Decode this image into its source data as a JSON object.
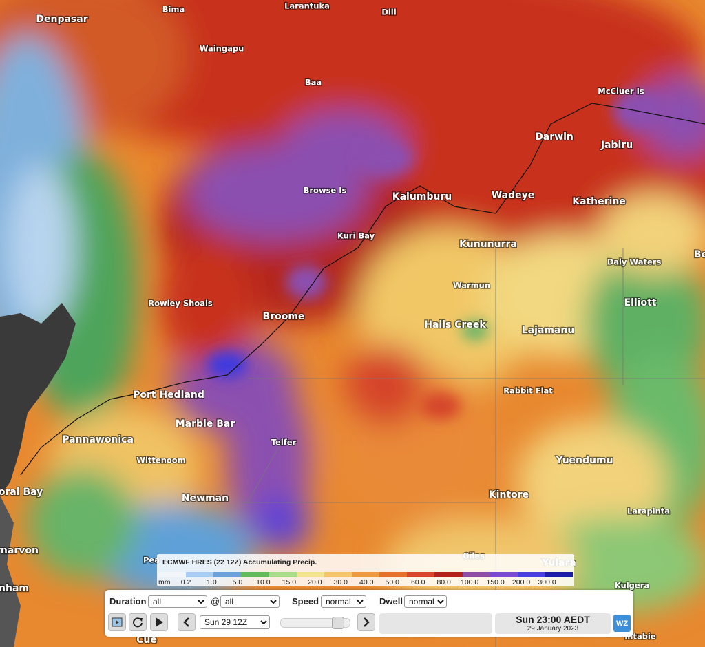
{
  "map": {
    "places": [
      {
        "label": "Denpasar",
        "size": "big"
      },
      {
        "label": "Bima",
        "size": "small"
      },
      {
        "label": "Larantuka",
        "size": "small"
      },
      {
        "label": "Dili",
        "size": "small"
      },
      {
        "label": "Waingapu",
        "size": "small"
      },
      {
        "label": "Baa",
        "size": "small"
      },
      {
        "label": "McCluer Is",
        "size": "small"
      },
      {
        "label": "Darwin",
        "size": "big"
      },
      {
        "label": "Jabiru",
        "size": "big"
      },
      {
        "label": "Browse Is",
        "size": "small"
      },
      {
        "label": "Kalumburu",
        "size": "big"
      },
      {
        "label": "Wadeye",
        "size": "big"
      },
      {
        "label": "Katherine",
        "size": "big"
      },
      {
        "label": "Kuri Bay",
        "size": "small"
      },
      {
        "label": "Kununurra",
        "size": "big"
      },
      {
        "label": "Daly Waters",
        "size": "small"
      },
      {
        "label": "Warmun",
        "size": "small"
      },
      {
        "label": "Elliott",
        "size": "big"
      },
      {
        "label": "Rowley Shoals",
        "size": "small"
      },
      {
        "label": "Broome",
        "size": "big"
      },
      {
        "label": "Halls Creek",
        "size": "big"
      },
      {
        "label": "Lajamanu",
        "size": "big"
      },
      {
        "label": "Rabbit Flat",
        "size": "small"
      },
      {
        "label": "Port Hedland",
        "size": "big"
      },
      {
        "label": "Marble Bar",
        "size": "big"
      },
      {
        "label": "Pannawonica",
        "size": "big"
      },
      {
        "label": "Telfer",
        "size": "small"
      },
      {
        "label": "Wittenoom",
        "size": "small"
      },
      {
        "label": "Yuendumu",
        "size": "big"
      },
      {
        "label": "oral Bay",
        "size": "big"
      },
      {
        "label": "Newman",
        "size": "big"
      },
      {
        "label": "Kintore",
        "size": "big"
      },
      {
        "label": "Larapinta",
        "size": "small"
      },
      {
        "label": "Giles",
        "size": "small"
      },
      {
        "label": "Yulara",
        "size": "big"
      },
      {
        "label": "rnarvon",
        "size": "big"
      },
      {
        "label": "Kulgera",
        "size": "small"
      },
      {
        "label": "nham",
        "size": "big"
      },
      {
        "label": "Cue",
        "size": "big"
      },
      {
        "label": "Pea",
        "size": "small"
      },
      {
        "label": "intabie",
        "size": "small"
      },
      {
        "label": "Bo",
        "size": "big"
      }
    ]
  },
  "legend": {
    "title": "ECMWF HRES (22 12Z) Accumulating Precip.",
    "unit": "mm",
    "ticks": [
      "0.2",
      "1.0",
      "5.0",
      "10.0",
      "15.0",
      "20.0",
      "30.0",
      "40.0",
      "50.0",
      "60.0",
      "80.0",
      "100.0",
      "150.0",
      "200.0",
      "300.0"
    ],
    "colors": [
      "#f2f6fb",
      "#a9cdf0",
      "#6ca2dc",
      "#5fba5a",
      "#a6dc8c",
      "#f1e48c",
      "#f6c56a",
      "#f09a40",
      "#e6722a",
      "#d8452a",
      "#b0221e",
      "#8c4fa8",
      "#7b4bd0",
      "#4a3fe0",
      "#1c1caa"
    ]
  },
  "controls": {
    "duration_label": "Duration",
    "duration": "all",
    "at": "@",
    "at_value": "all",
    "speed_label": "Speed",
    "speed": "normal",
    "dwell_label": "Dwell",
    "dwell": "normal",
    "frame": "Sun 29 12Z",
    "time": "Sun 23:00 AEDT",
    "date": "29 January 2023",
    "logo": "WZ"
  }
}
